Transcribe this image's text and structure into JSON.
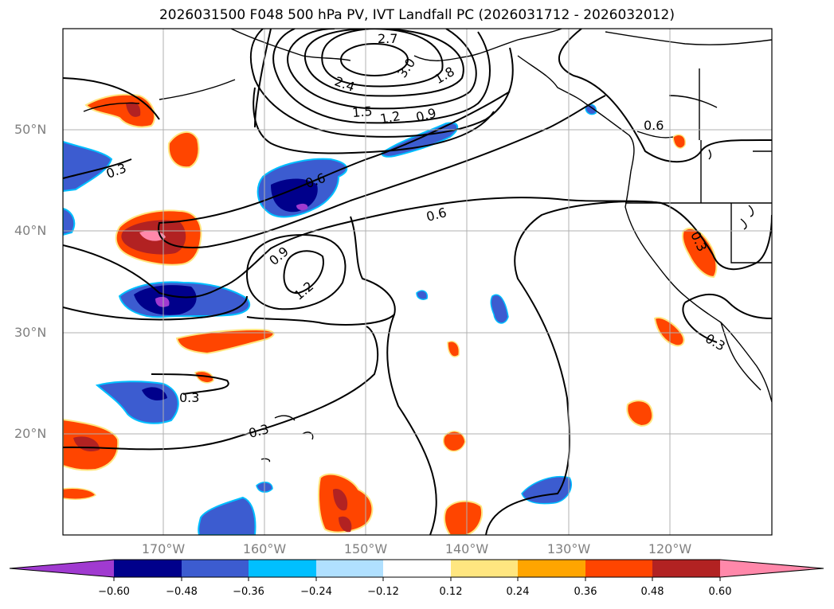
{
  "title": "2026031500 F048 500 hPa PV, IVT Landfall PC (2026031712 - 2026032012)",
  "map": {
    "lat_labels": [
      "50°N",
      "40°N",
      "30°N",
      "20°N"
    ],
    "lon_labels": [
      "170°W",
      "160°W",
      "150°W",
      "140°W",
      "130°W",
      "120°W"
    ],
    "contour_labels": [
      "2.7",
      "3.0",
      "1.8",
      "2.4",
      "1.5",
      "1.2",
      "0.9",
      "0.6",
      "0.6",
      "0.3",
      "0.6",
      "0.9",
      "1.2",
      "0.3",
      "0.3",
      "0.3",
      "0.3"
    ]
  },
  "colorbar": {
    "tick_labels": [
      "−0.60",
      "−0.48",
      "−0.36",
      "−0.24",
      "−0.12",
      "0.12",
      "0.24",
      "0.36",
      "0.48",
      "0.60"
    ],
    "colors": [
      "#a03ad0",
      "#00008b",
      "#3c5cd0",
      "#00bfff",
      "#b0e0ff",
      "#ffffff",
      "#ffe680",
      "#ffa500",
      "#ff4500",
      "#b22222",
      "#ff88aa"
    ]
  },
  "colors": {
    "neg_strong": "#00008b",
    "neg_mid": "#3c5cd0",
    "neg_light": "#00bfff",
    "pos_light": "#ffa500",
    "pos_mid": "#ff4500",
    "pos_strong": "#b22222",
    "pos_max": "#ff88aa",
    "grid": "#b0b0b0",
    "tick_label": "#808080"
  }
}
